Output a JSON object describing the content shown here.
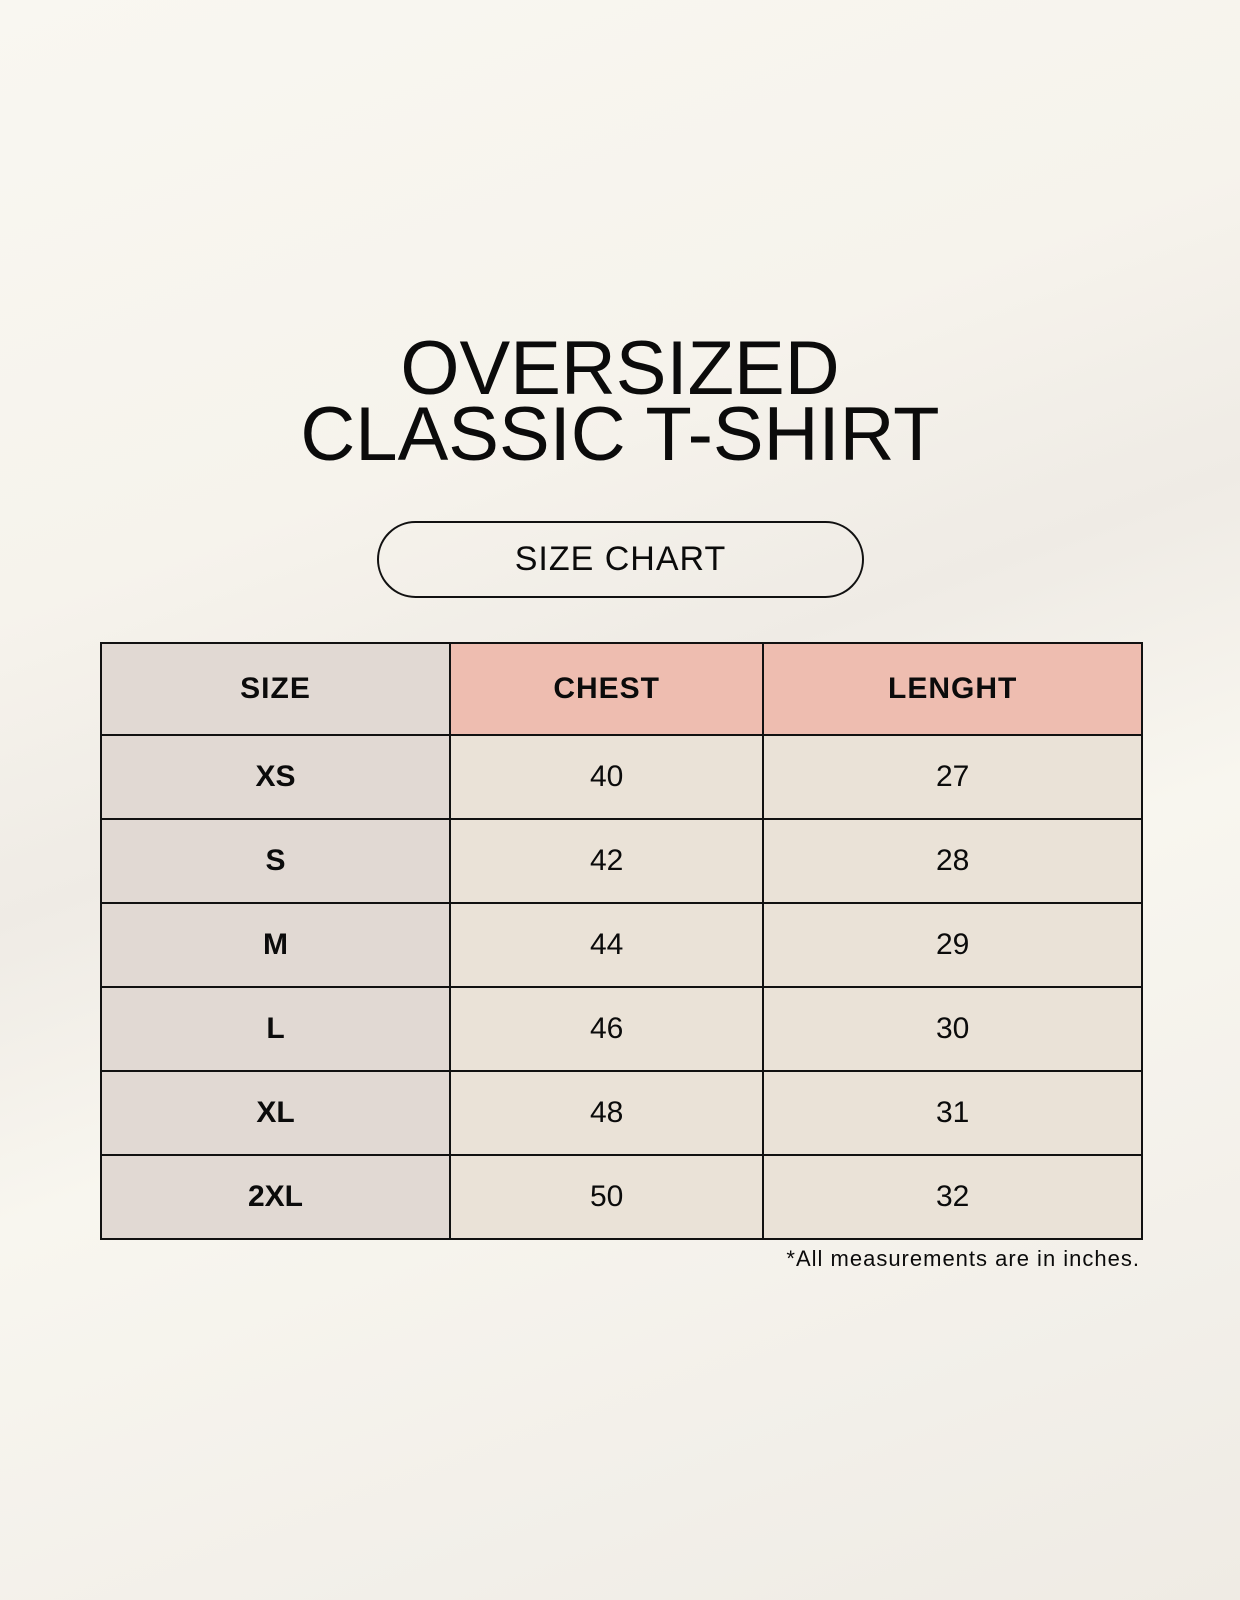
{
  "title": {
    "line1": "OVERSIZED",
    "line2": "CLASSIC T-SHIRT"
  },
  "badge": "SIZE CHART",
  "table": {
    "headers": [
      "SIZE",
      "CHEST",
      "LENGHT"
    ],
    "rows": [
      [
        "XS",
        "40",
        "27"
      ],
      [
        "S",
        "42",
        "28"
      ],
      [
        "M",
        "44",
        "29"
      ],
      [
        "L",
        "46",
        "30"
      ],
      [
        "XL",
        "48",
        "31"
      ],
      [
        "2XL",
        "50",
        "32"
      ]
    ]
  },
  "footnote": "*All measurements are in inches.",
  "colors": {
    "size_column": "#e1d9d3",
    "header_accent": "#eebdb0",
    "cell": "#eae2d7",
    "background": "#f8f6ef"
  }
}
